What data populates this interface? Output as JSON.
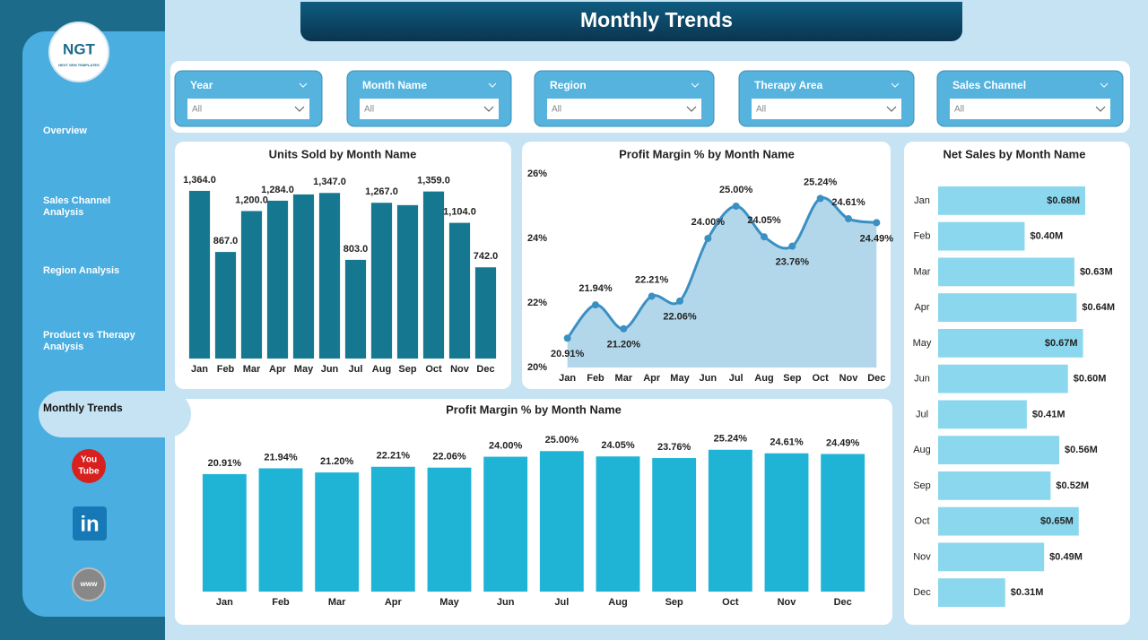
{
  "header": {
    "title": "Monthly Trends"
  },
  "logo": {
    "mark": "NGT",
    "tagline": "NEXT GEN TEMPLATES"
  },
  "nav": [
    {
      "label": "Overview",
      "selected": false
    },
    {
      "label": "Sales Channel Analysis",
      "selected": false
    },
    {
      "label": "Region Analysis",
      "selected": false
    },
    {
      "label": "Product vs Therapy Analysis",
      "selected": false
    },
    {
      "label": "Monthly Trends",
      "selected": true
    }
  ],
  "filters": [
    {
      "label": "Year",
      "value": "All"
    },
    {
      "label": "Month Name",
      "value": "All"
    },
    {
      "label": "Region",
      "value": "All"
    },
    {
      "label": "Therapy Area",
      "value": "All"
    },
    {
      "label": "Sales Channel",
      "value": "All"
    }
  ],
  "social": {
    "youtube": [
      "You",
      "Tube"
    ],
    "linkedin": "in",
    "web": "www"
  },
  "chart_data": [
    {
      "type": "bar",
      "title": "Units Sold by Month Name",
      "categories": [
        "Jan",
        "Feb",
        "Mar",
        "Apr",
        "May",
        "Jun",
        "Jul",
        "Aug",
        "Sep",
        "Oct",
        "Nov",
        "Dec"
      ],
      "values": [
        1364,
        867,
        1200,
        1284,
        1335,
        1347,
        803,
        1267,
        1248,
        1359,
        1104,
        742
      ],
      "value_labels": [
        "1,364.0",
        "867.0",
        "1,200.0",
        "1,284.0",
        null,
        "1,347.0",
        "803.0",
        "1,267.0",
        null,
        "1,359.0",
        "1,104.0",
        "742.0"
      ],
      "color": "#167890",
      "ylim": [
        0,
        1400
      ]
    },
    {
      "type": "line",
      "title": "Profit Margin % by Month Name",
      "categories": [
        "Jan",
        "Feb",
        "Mar",
        "Apr",
        "May",
        "Jun",
        "Jul",
        "Aug",
        "Sep",
        "Oct",
        "Nov",
        "Dec"
      ],
      "values": [
        20.91,
        21.94,
        21.2,
        22.21,
        22.06,
        24.0,
        25.0,
        24.05,
        23.76,
        25.24,
        24.61,
        24.49
      ],
      "value_labels": [
        "20.91%",
        "21.94%",
        "21.20%",
        "22.21%",
        "22.06%",
        "24.00%",
        "25.00%",
        "24.05%",
        "23.76%",
        "25.24%",
        "24.61%",
        "24.49%"
      ],
      "color": "#3a90c2",
      "area_color": "#b3d7ea",
      "ylim": [
        20,
        26
      ],
      "yticks": [
        {
          "value": 20,
          "label": "20%"
        },
        {
          "value": 22,
          "label": "22%"
        },
        {
          "value": 24,
          "label": "24%"
        },
        {
          "value": 26,
          "label": "26%"
        }
      ]
    },
    {
      "type": "bar",
      "orientation": "horizontal",
      "title": "Net Sales by Month Name",
      "categories": [
        "Jan",
        "Feb",
        "Mar",
        "Apr",
        "May",
        "Jun",
        "Jul",
        "Aug",
        "Sep",
        "Oct",
        "Nov",
        "Dec"
      ],
      "values": [
        0.68,
        0.4,
        0.63,
        0.64,
        0.67,
        0.6,
        0.41,
        0.56,
        0.52,
        0.65,
        0.49,
        0.31
      ],
      "value_labels": [
        "$0.68M",
        "$0.40M",
        "$0.63M",
        "$0.64M",
        "$0.67M",
        "$0.60M",
        "$0.41M",
        "$0.56M",
        "$0.52M",
        "$0.65M",
        "$0.49M",
        "$0.31M"
      ],
      "color": "#8bd7ee",
      "xlim": [
        0,
        0.85
      ]
    },
    {
      "type": "bar",
      "title": "Profit Margin % by Month Name",
      "categories": [
        "Jan",
        "Feb",
        "Mar",
        "Apr",
        "May",
        "Jun",
        "Jul",
        "Aug",
        "Sep",
        "Oct",
        "Nov",
        "Dec"
      ],
      "values": [
        20.91,
        21.94,
        21.2,
        22.21,
        22.06,
        24.0,
        25.0,
        24.05,
        23.76,
        25.24,
        24.61,
        24.49
      ],
      "value_labels": [
        "20.91%",
        "21.94%",
        "21.20%",
        "22.21%",
        "22.06%",
        "24.00%",
        "25.00%",
        "24.05%",
        "23.76%",
        "25.24%",
        "24.61%",
        "24.49%"
      ],
      "color": "#1fb4d6",
      "ylim": [
        0,
        26
      ]
    }
  ]
}
